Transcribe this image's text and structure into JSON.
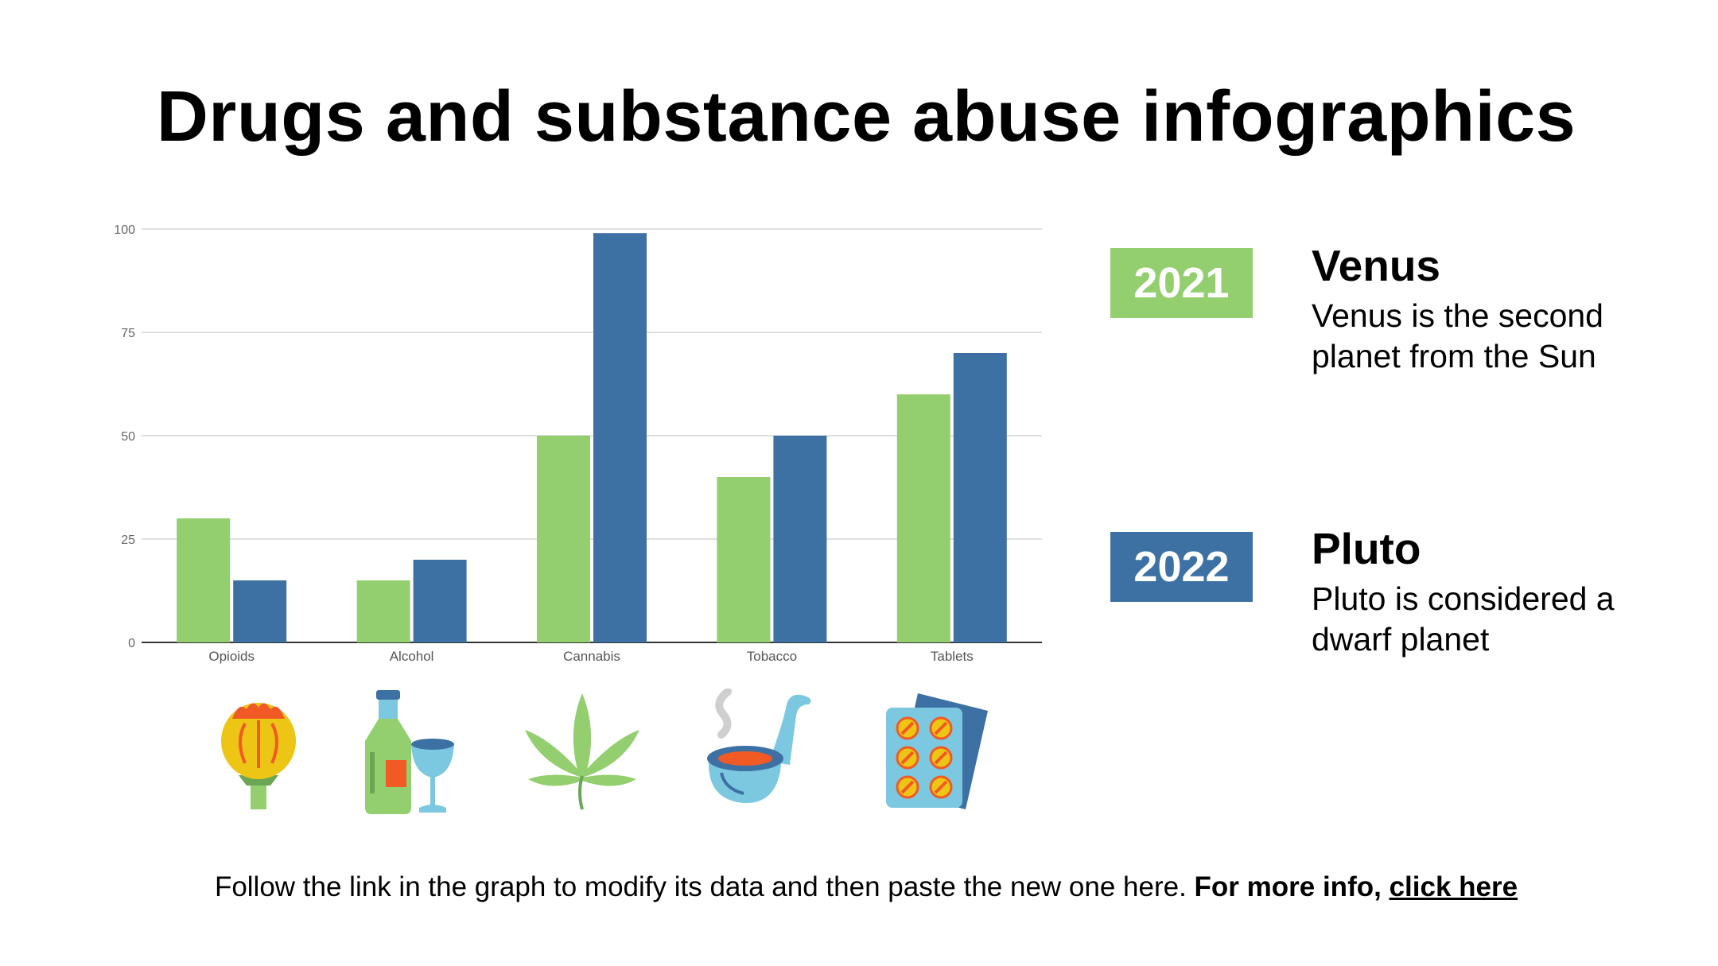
{
  "title": "Drugs and substance abuse infographics",
  "chart_data": {
    "type": "bar",
    "categories": [
      "Opioids",
      "Alcohol",
      "Cannabis",
      "Tobacco",
      "Tablets"
    ],
    "series": [
      {
        "name": "2021",
        "values": [
          30,
          15,
          50,
          40,
          60
        ],
        "color": "#93cf6e"
      },
      {
        "name": "2022",
        "values": [
          15,
          20,
          99,
          50,
          70
        ],
        "color": "#3d71a4"
      }
    ],
    "yticks": [
      0,
      25,
      50,
      75,
      100
    ],
    "ylim": [
      0,
      100
    ],
    "title": "",
    "xlabel": "",
    "ylabel": "",
    "grid": true
  },
  "icons": [
    "poppy-icon",
    "alcohol-bottle-glass-icon",
    "cannabis-leaf-icon",
    "smoking-pipe-icon",
    "pill-blister-pack-icon"
  ],
  "legend": [
    {
      "year": "2021",
      "name": "Venus",
      "description": "Venus is the second planet from the Sun",
      "color": "#93cf6e"
    },
    {
      "year": "2022",
      "name": "Pluto",
      "description": "Pluto is considered a dwarf planet",
      "color": "#3d71a4"
    }
  ],
  "footer": {
    "text": "Follow the link in the graph to modify its data and then paste the new one here.",
    "bold_text": "For more info,",
    "link_text": "click here"
  }
}
